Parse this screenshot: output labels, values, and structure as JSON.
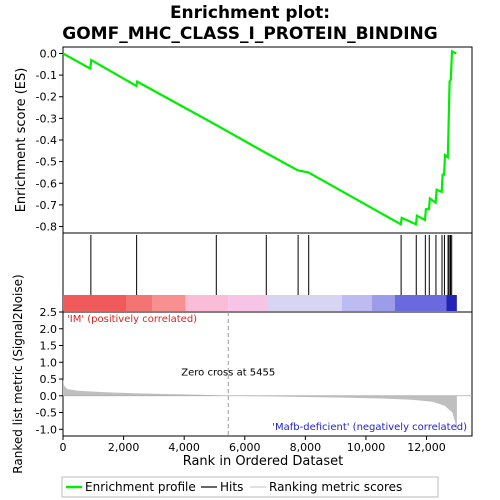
{
  "title_line1": "Enrichment plot:",
  "title_line2": "GOMF_MHC_CLASS_I_PROTEIN_BINDING",
  "colors": {
    "es_line": "#00ee00",
    "hits": "#000000",
    "metric_fill": "#bfbfbf",
    "positive_text": "#dd2222",
    "negative_text": "#2222cc",
    "zero_line": "#aaaaaa"
  },
  "chart_data": [
    {
      "type": "line",
      "name": "enrichment-profile",
      "ylabel": "Enrichment score (ES)",
      "ylim": [
        -0.83,
        0.03
      ],
      "yticks": [
        0.0,
        -0.1,
        -0.2,
        -0.3,
        -0.4,
        -0.5,
        -0.6,
        -0.7,
        -0.8
      ],
      "ytick_labels": [
        "0.0",
        "-0.1",
        "-0.2",
        "-0.3",
        "-0.4",
        "-0.5",
        "-0.6",
        "-0.7",
        "-0.8"
      ],
      "xlim": [
        0,
        13500
      ],
      "points": [
        [
          0,
          0.0
        ],
        [
          900,
          -0.07
        ],
        [
          930,
          -0.03
        ],
        [
          2420,
          -0.15
        ],
        [
          2450,
          -0.13
        ],
        [
          5050,
          -0.33
        ],
        [
          6700,
          -0.46
        ],
        [
          7750,
          -0.54
        ],
        [
          8100,
          -0.55
        ],
        [
          11150,
          -0.79
        ],
        [
          11180,
          -0.76
        ],
        [
          11650,
          -0.79
        ],
        [
          11680,
          -0.75
        ],
        [
          11950,
          -0.77
        ],
        [
          11980,
          -0.72
        ],
        [
          12080,
          -0.72
        ],
        [
          12110,
          -0.67
        ],
        [
          12300,
          -0.69
        ],
        [
          12330,
          -0.63
        ],
        [
          12500,
          -0.64
        ],
        [
          12530,
          -0.56
        ],
        [
          12580,
          -0.56
        ],
        [
          12610,
          -0.47
        ],
        [
          12700,
          -0.48
        ],
        [
          12720,
          -0.37
        ],
        [
          12740,
          -0.25
        ],
        [
          12760,
          -0.13
        ],
        [
          12800,
          -0.12
        ],
        [
          12840,
          0.01
        ],
        [
          12980,
          0.0
        ]
      ]
    },
    {
      "type": "hits",
      "name": "gene-hits",
      "x": [
        920,
        2430,
        5060,
        6710,
        7760,
        8110,
        11160,
        11660,
        11960,
        12090,
        12310,
        12510,
        12590,
        12710,
        12745,
        12790,
        12830
      ]
    },
    {
      "type": "heatmap",
      "name": "rank-color-bar",
      "segments": [
        {
          "start": 0,
          "end": 2100,
          "color": "#f05a5a"
        },
        {
          "start": 2100,
          "end": 2950,
          "color": "#f47474"
        },
        {
          "start": 2950,
          "end": 4050,
          "color": "#f89090"
        },
        {
          "start": 4050,
          "end": 5450,
          "color": "#fbbcd8"
        },
        {
          "start": 5450,
          "end": 6750,
          "color": "#f6c4e4"
        },
        {
          "start": 6750,
          "end": 9200,
          "color": "#d8d4f4"
        },
        {
          "start": 9200,
          "end": 10200,
          "color": "#bcbcf0"
        },
        {
          "start": 10200,
          "end": 10950,
          "color": "#9c9ce8"
        },
        {
          "start": 10950,
          "end": 12650,
          "color": "#6a6ae0"
        },
        {
          "start": 12650,
          "end": 13000,
          "color": "#2222b8"
        }
      ]
    },
    {
      "type": "area",
      "name": "ranked-list-metric",
      "xlabel": "Rank in Ordered Dataset",
      "ylabel": "Ranked list metric (Signal2Noise)",
      "ylim": [
        -1.2,
        2.5
      ],
      "yticks": [
        2.5,
        2.0,
        1.5,
        1.0,
        0.5,
        0.0,
        -0.5,
        -1.0
      ],
      "ytick_labels": [
        "2.5",
        "2.0",
        "1.5",
        "1.0",
        "0.5",
        "0.0",
        "-0.5",
        "-1.0"
      ],
      "xlim": [
        0,
        13500
      ],
      "xticks": [
        0,
        2000,
        4000,
        6000,
        8000,
        10000,
        12000
      ],
      "xtick_labels": [
        "0",
        "2,000",
        "4,000",
        "6,000",
        "8,000",
        "10,000",
        "12,000"
      ],
      "points": [
        [
          0,
          0.5
        ],
        [
          40,
          0.3
        ],
        [
          150,
          0.2
        ],
        [
          500,
          0.15
        ],
        [
          1500,
          0.1
        ],
        [
          3000,
          0.06
        ],
        [
          4500,
          0.03
        ],
        [
          5455,
          0.0
        ],
        [
          7000,
          -0.02
        ],
        [
          9000,
          -0.05
        ],
        [
          10500,
          -0.08
        ],
        [
          11500,
          -0.12
        ],
        [
          12200,
          -0.18
        ],
        [
          12600,
          -0.3
        ],
        [
          12850,
          -0.5
        ],
        [
          12950,
          -0.8
        ],
        [
          13000,
          -1.1
        ]
      ],
      "zero_cross_x": 5455,
      "zero_cross_label": "Zero cross at 5455",
      "positive_label": "'IM' (positively correlated)",
      "negative_label": "'Mafb-deficient' (negatively correlated)"
    }
  ],
  "legend": {
    "items": [
      {
        "label": "Enrichment profile",
        "color": "#00ee00"
      },
      {
        "label": "Hits",
        "color": "#000000"
      },
      {
        "label": "Ranking metric scores",
        "color": "#cccccc"
      }
    ]
  }
}
